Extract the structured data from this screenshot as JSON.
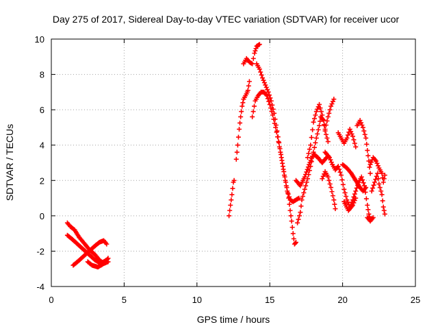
{
  "chart_data": {
    "type": "scatter",
    "title": "Day 275 of 2017, Sidereal Day-to-day VTEC variation (SDTVAR) for receiver ucor",
    "xlabel": "GPS time / hours",
    "ylabel": "SDTVAR / TECUs",
    "xlim": [
      0,
      25
    ],
    "ylim": [
      -4,
      10
    ],
    "xticks": [
      0,
      5,
      10,
      15,
      20,
      25
    ],
    "yticks": [
      -4,
      -2,
      0,
      2,
      4,
      6,
      8,
      10
    ],
    "grid": true,
    "marker": "plus",
    "color": "#ff0000",
    "series": [
      {
        "segments": [
          [
            [
              1.1,
              -0.4
            ],
            [
              1.3,
              -0.6
            ],
            [
              1.6,
              -0.8
            ],
            [
              1.9,
              -1.2
            ],
            [
              2.2,
              -1.5
            ],
            [
              2.6,
              -1.9
            ],
            [
              3.0,
              -2.2
            ],
            [
              3.3,
              -2.5
            ],
            [
              3.6,
              -2.7
            ],
            [
              3.9,
              -2.6
            ]
          ],
          [
            [
              1.1,
              -1.1
            ],
            [
              1.4,
              -1.3
            ],
            [
              1.8,
              -1.6
            ],
            [
              2.2,
              -1.9
            ],
            [
              2.6,
              -2.2
            ],
            [
              3.0,
              -2.5
            ],
            [
              3.4,
              -2.7
            ],
            [
              3.8,
              -2.5
            ]
          ],
          [
            [
              1.5,
              -2.8
            ],
            [
              1.8,
              -2.6
            ],
            [
              2.2,
              -2.3
            ],
            [
              2.6,
              -2.0
            ],
            [
              3.0,
              -1.7
            ],
            [
              3.3,
              -1.5
            ],
            [
              3.6,
              -1.4
            ],
            [
              3.8,
              -1.6
            ]
          ],
          [
            [
              2.5,
              -2.6
            ],
            [
              2.8,
              -2.8
            ],
            [
              3.2,
              -2.9
            ],
            [
              3.6,
              -2.7
            ],
            [
              3.9,
              -2.4
            ]
          ],
          [
            [
              12.2,
              0.0
            ],
            [
              12.3,
              0.6
            ],
            [
              12.4,
              1.2
            ],
            [
              12.5,
              1.9
            ],
            [
              12.55,
              2.0
            ]
          ],
          [
            [
              12.7,
              3.2
            ],
            [
              12.8,
              4.0
            ],
            [
              12.9,
              4.9
            ],
            [
              13.0,
              5.6
            ],
            [
              13.1,
              6.2
            ],
            [
              13.2,
              6.6
            ],
            [
              13.4,
              6.9
            ],
            [
              13.5,
              7.1
            ],
            [
              13.6,
              7.6
            ]
          ],
          [
            [
              13.2,
              8.6
            ],
            [
              13.4,
              8.9
            ],
            [
              13.6,
              8.7
            ],
            [
              13.8,
              8.6
            ],
            [
              13.95,
              9.2
            ],
            [
              14.1,
              9.6
            ],
            [
              14.3,
              9.7
            ]
          ],
          [
            [
              13.8,
              5.6
            ],
            [
              14.0,
              6.5
            ],
            [
              14.2,
              6.8
            ],
            [
              14.4,
              7.0
            ],
            [
              14.6,
              7.0
            ],
            [
              14.8,
              6.8
            ],
            [
              15.0,
              6.3
            ],
            [
              15.2,
              5.7
            ],
            [
              15.4,
              5.0
            ],
            [
              15.6,
              4.2
            ],
            [
              15.8,
              3.3
            ],
            [
              16.0,
              2.3
            ],
            [
              16.2,
              1.4
            ],
            [
              16.4,
              0.9
            ],
            [
              16.6,
              0.8
            ],
            [
              16.8,
              0.9
            ],
            [
              17.0,
              1.0
            ]
          ],
          [
            [
              14.1,
              8.6
            ],
            [
              14.3,
              8.3
            ],
            [
              14.5,
              7.8
            ],
            [
              14.7,
              7.4
            ],
            [
              14.9,
              7.0
            ],
            [
              15.1,
              6.5
            ],
            [
              15.3,
              5.8
            ],
            [
              15.5,
              4.8
            ],
            [
              15.7,
              3.8
            ],
            [
              15.9,
              2.8
            ],
            [
              16.1,
              1.9
            ],
            [
              16.3,
              1.0
            ],
            [
              16.4,
              0.3
            ],
            [
              16.5,
              -0.3
            ],
            [
              16.6,
              -1.0
            ],
            [
              16.7,
              -1.6
            ],
            [
              16.8,
              -1.5
            ]
          ],
          [
            [
              16.9,
              -0.4
            ],
            [
              17.1,
              0.2
            ],
            [
              17.2,
              0.9
            ],
            [
              17.4,
              1.5
            ],
            [
              17.6,
              2.1
            ],
            [
              17.8,
              2.8
            ],
            [
              18.0,
              3.6
            ],
            [
              18.2,
              4.4
            ],
            [
              18.4,
              5.1
            ],
            [
              18.5,
              5.6
            ],
            [
              18.7,
              5.4
            ],
            [
              18.8,
              4.8
            ],
            [
              19.0,
              4.2
            ]
          ],
          [
            [
              16.8,
              2.0
            ],
            [
              17.1,
              1.7
            ],
            [
              17.4,
              2.2
            ],
            [
              17.7,
              2.9
            ],
            [
              18.0,
              3.5
            ],
            [
              18.3,
              3.3
            ],
            [
              18.6,
              3.0
            ],
            [
              18.9,
              3.3
            ]
          ],
          [
            [
              17.6,
              3.3
            ],
            [
              17.8,
              4.0
            ],
            [
              18.0,
              5.3
            ],
            [
              18.2,
              5.9
            ],
            [
              18.4,
              6.3
            ],
            [
              18.6,
              5.7
            ],
            [
              18.8,
              4.9
            ],
            [
              19.0,
              5.6
            ],
            [
              19.2,
              6.2
            ],
            [
              19.4,
              6.6
            ]
          ],
          [
            [
              18.6,
              2.1
            ],
            [
              18.8,
              2.5
            ],
            [
              19.0,
              2.2
            ],
            [
              19.2,
              1.6
            ],
            [
              19.4,
              0.9
            ],
            [
              19.5,
              0.4
            ]
          ],
          [
            [
              18.8,
              3.6
            ],
            [
              19.1,
              3.3
            ],
            [
              19.3,
              2.9
            ],
            [
              19.5,
              2.6
            ],
            [
              19.7,
              2.8
            ],
            [
              19.9,
              2.3
            ],
            [
              20.1,
              1.5
            ],
            [
              20.3,
              0.9
            ],
            [
              20.5,
              0.5
            ],
            [
              20.7,
              0.9
            ],
            [
              20.9,
              1.4
            ],
            [
              21.1,
              1.9
            ],
            [
              21.3,
              2.2
            ],
            [
              21.5,
              1.7
            ],
            [
              21.7,
              0.6
            ],
            [
              21.8,
              0.1
            ],
            [
              21.9,
              -0.2
            ]
          ],
          [
            [
              19.7,
              4.7
            ],
            [
              19.9,
              4.4
            ],
            [
              20.1,
              4.1
            ],
            [
              20.3,
              4.4
            ],
            [
              20.5,
              4.9
            ],
            [
              20.7,
              4.5
            ],
            [
              20.9,
              3.9
            ]
          ],
          [
            [
              20.0,
              2.9
            ],
            [
              20.3,
              2.7
            ],
            [
              20.6,
              2.4
            ],
            [
              20.9,
              2.0
            ],
            [
              21.2,
              1.6
            ],
            [
              21.4,
              1.4
            ],
            [
              21.6,
              1.6
            ]
          ],
          [
            [
              20.1,
              0.8
            ],
            [
              20.4,
              0.3
            ],
            [
              20.7,
              0.6
            ],
            [
              20.9,
              1.0
            ]
          ],
          [
            [
              21.0,
              5.1
            ],
            [
              21.2,
              5.4
            ],
            [
              21.4,
              5.0
            ],
            [
              21.6,
              4.4
            ],
            [
              21.7,
              3.7
            ],
            [
              21.8,
              3.1
            ],
            [
              21.9,
              2.4
            ]
          ],
          [
            [
              21.7,
              -0.1
            ],
            [
              21.9,
              -0.3
            ],
            [
              22.1,
              -0.1
            ]
          ],
          [
            [
              21.9,
              2.9
            ],
            [
              22.1,
              3.3
            ],
            [
              22.3,
              3.1
            ],
            [
              22.5,
              2.7
            ],
            [
              22.7,
              2.4
            ],
            [
              22.8,
              1.9
            ],
            [
              22.9,
              2.3
            ]
          ],
          [
            [
              22.0,
              1.4
            ],
            [
              22.2,
              1.9
            ],
            [
              22.4,
              2.4
            ],
            [
              22.5,
              1.8
            ],
            [
              22.7,
              1.2
            ],
            [
              22.8,
              0.5
            ],
            [
              22.9,
              0.1
            ]
          ]
        ]
      }
    ]
  }
}
